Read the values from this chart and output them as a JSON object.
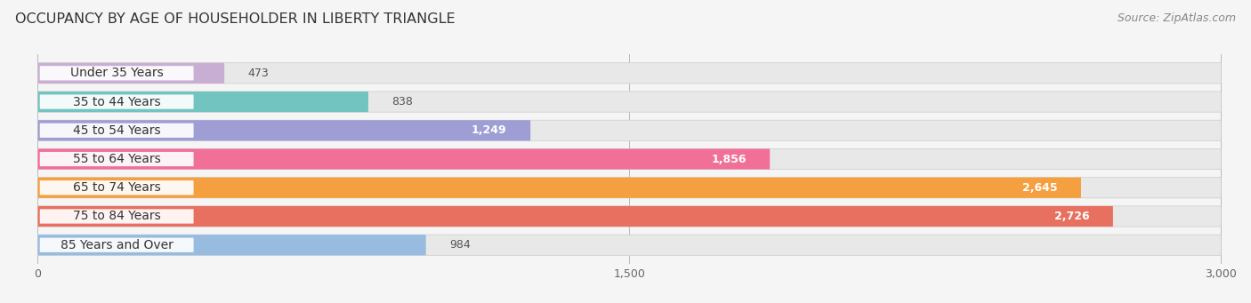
{
  "title": "OCCUPANCY BY AGE OF HOUSEHOLDER IN LIBERTY TRIANGLE",
  "source": "Source: ZipAtlas.com",
  "categories": [
    "Under 35 Years",
    "35 to 44 Years",
    "45 to 54 Years",
    "55 to 64 Years",
    "65 to 74 Years",
    "75 to 84 Years",
    "85 Years and Over"
  ],
  "values": [
    473,
    838,
    1249,
    1856,
    2645,
    2726,
    984
  ],
  "bar_colors": [
    "#c9aed4",
    "#72c4c0",
    "#9e9ed4",
    "#f07098",
    "#f5a040",
    "#e87060",
    "#98bce0"
  ],
  "bar_bg_color": "#e8e8e8",
  "label_colors": [
    "#444444",
    "#444444",
    "#444444",
    "#ffffff",
    "#ffffff",
    "#ffffff",
    "#444444"
  ],
  "xlim_min": 0,
  "xlim_max": 3000,
  "xticks": [
    0,
    1500,
    3000
  ],
  "background_color": "#f5f5f5",
  "title_fontsize": 11.5,
  "source_fontsize": 9,
  "label_fontsize": 9,
  "tick_fontsize": 9,
  "category_fontsize": 10
}
